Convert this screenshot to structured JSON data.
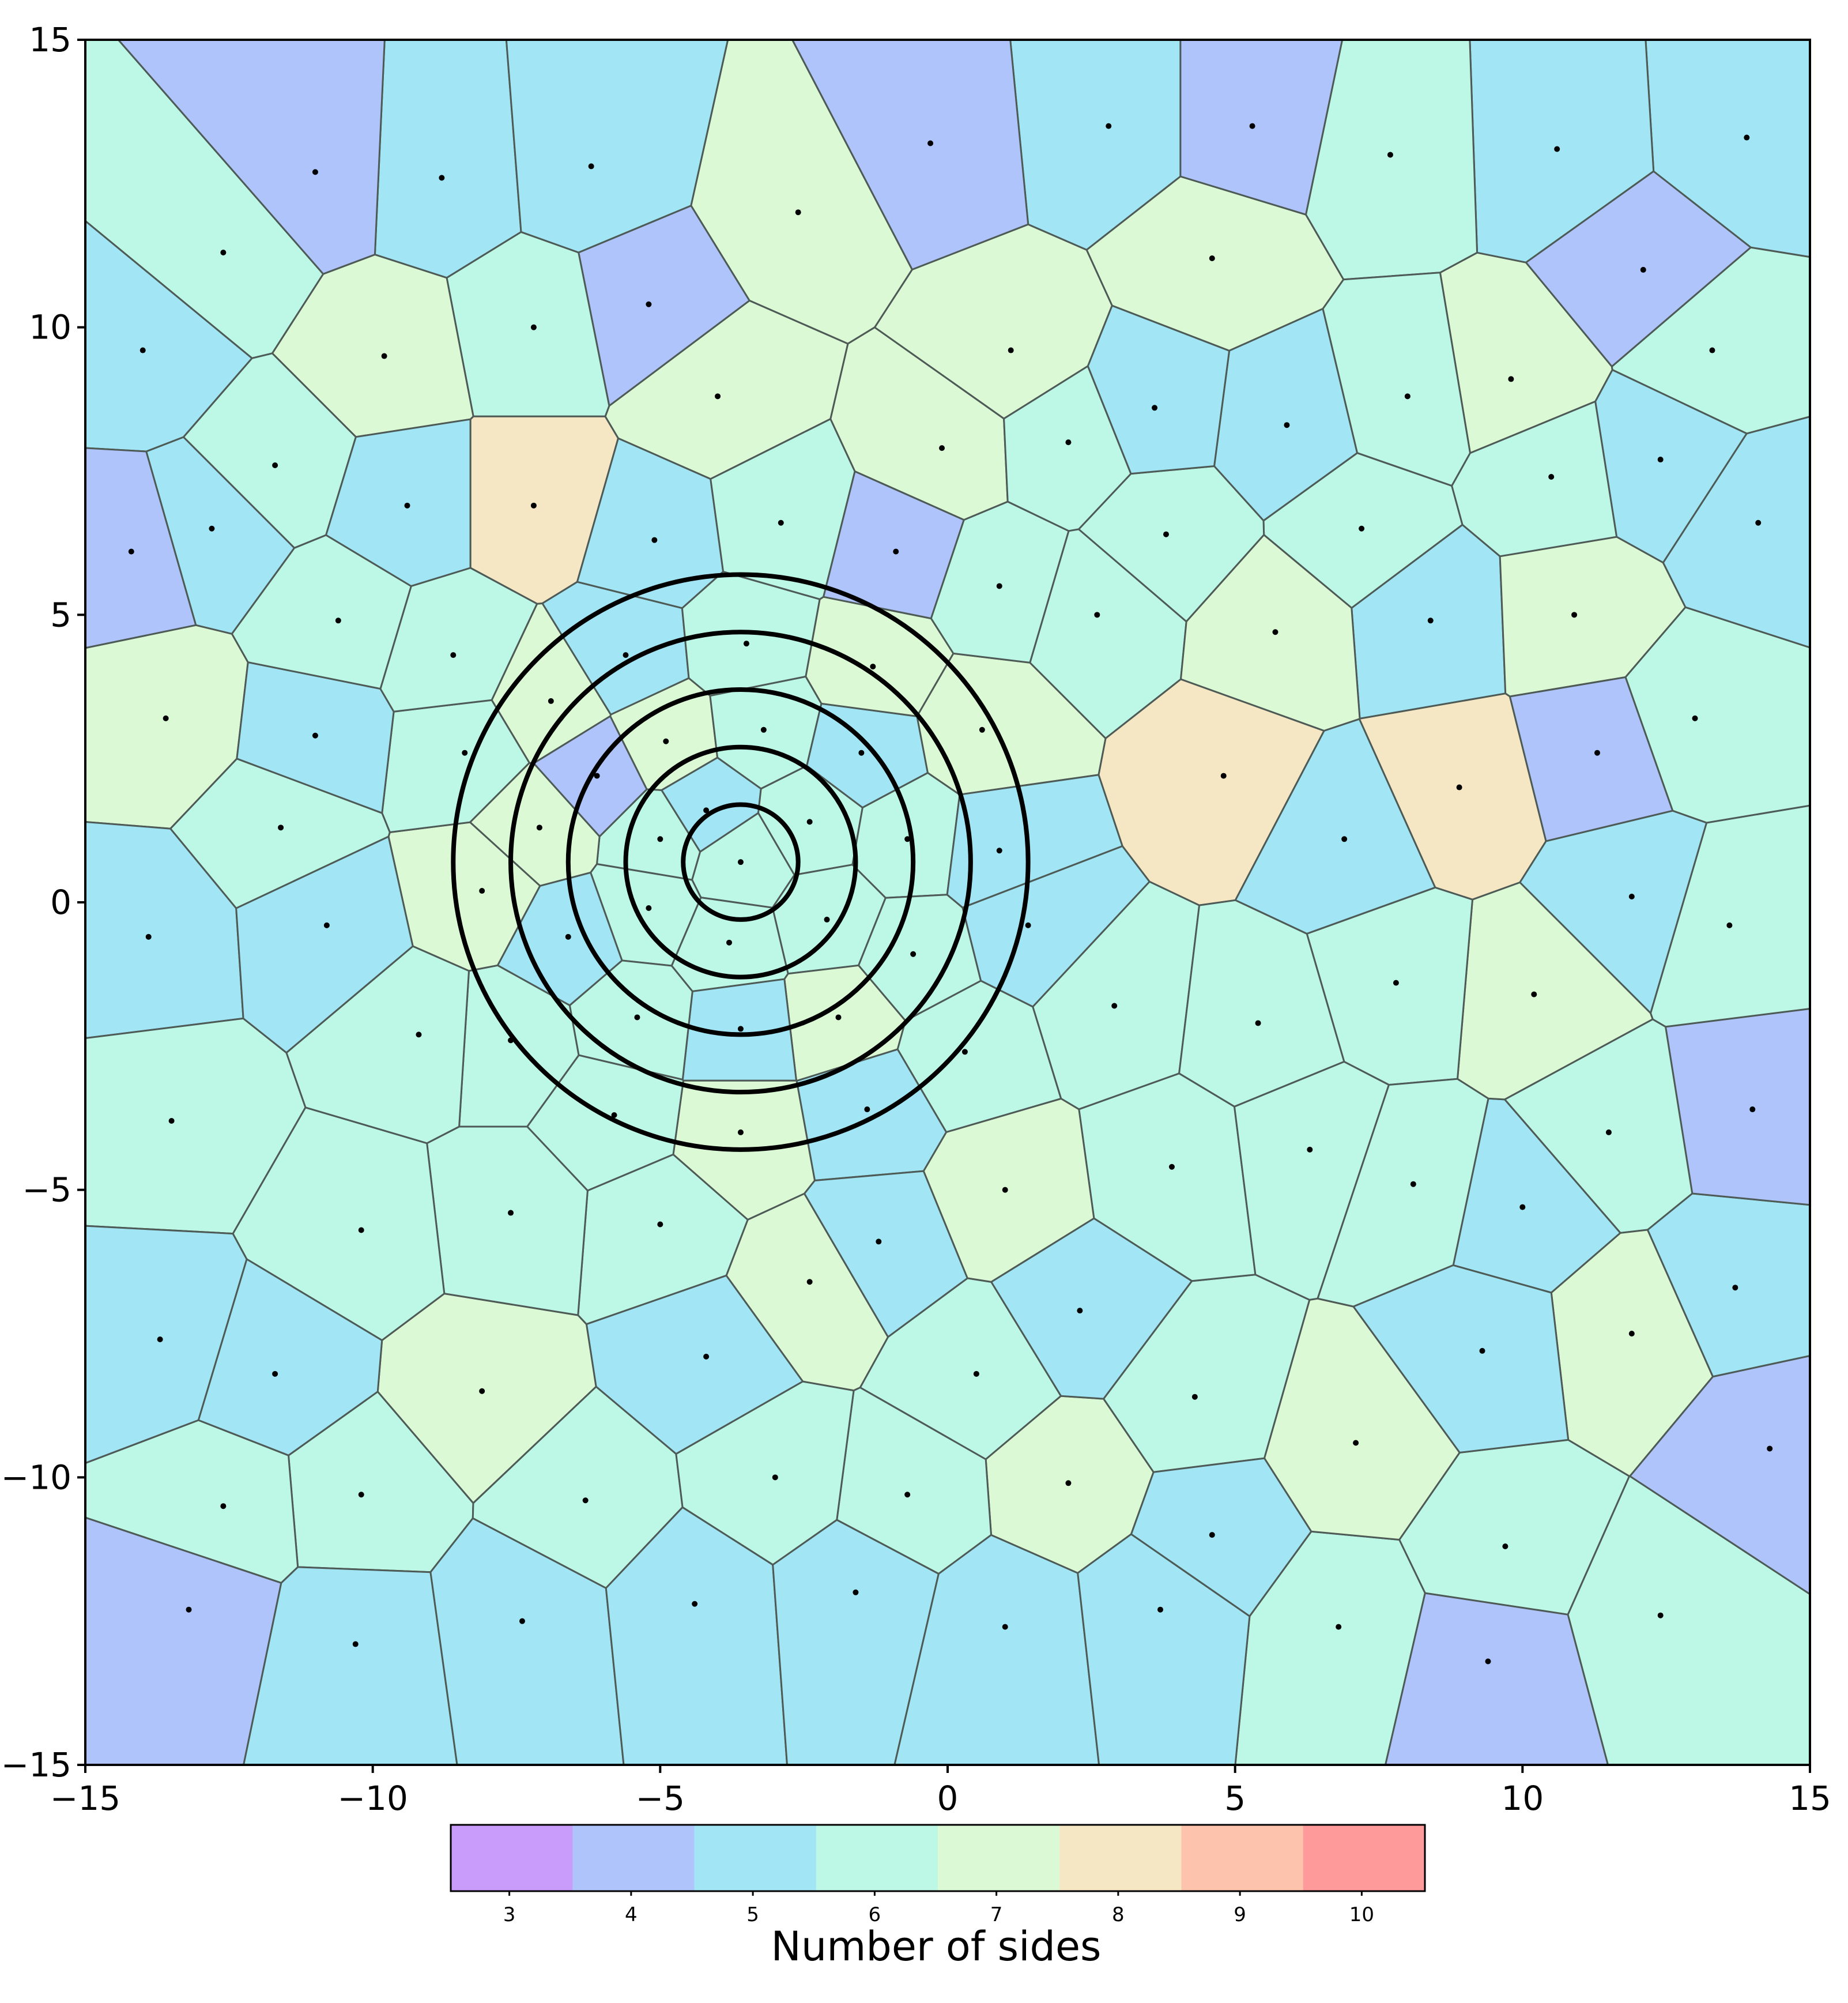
{
  "chart_data": {
    "type": "voronoi",
    "xlim": [
      -15,
      15
    ],
    "ylim": [
      -15,
      15
    ],
    "x_ticks": [
      -15,
      -10,
      -5,
      0,
      5,
      10,
      15
    ],
    "y_ticks": [
      -15,
      -10,
      -5,
      0,
      5,
      10,
      15
    ],
    "x_tick_labels": [
      "−15",
      "−10",
      "−5",
      "0",
      "5",
      "10",
      "15"
    ],
    "y_tick_labels": [
      "−15",
      "−10",
      "−5",
      "0",
      "5",
      "10",
      "15"
    ],
    "colorbar": {
      "label": "Number of sides",
      "values": [
        3,
        4,
        5,
        6,
        7,
        8,
        9,
        10
      ],
      "tick_labels": [
        "3",
        "4",
        "5",
        "6",
        "7",
        "8",
        "9",
        "10"
      ],
      "colors": [
        "#c99bfa",
        "#aec4fa",
        "#a2e6f5",
        "#bdf7e6",
        "#dcf9d6",
        "#f5e7c4",
        "#fdc3ac",
        "#fe9a9a"
      ]
    },
    "circles": {
      "center": [
        -3.6,
        0.7
      ],
      "radii": [
        1.0,
        2.0,
        3.0,
        4.0,
        5.0
      ]
    },
    "seed_points": [
      [
        -3.6,
        0.7
      ],
      [
        -4.2,
        1.6
      ],
      [
        -2.4,
        1.4
      ],
      [
        -2.1,
        -0.3
      ],
      [
        -3.8,
        -0.7
      ],
      [
        -5.2,
        -0.1
      ],
      [
        -5.0,
        1.1
      ],
      [
        -6.1,
        2.2
      ],
      [
        -4.9,
        2.8
      ],
      [
        -3.2,
        3.0
      ],
      [
        -1.5,
        2.6
      ],
      [
        -0.7,
        1.1
      ],
      [
        -0.6,
        -0.9
      ],
      [
        -1.9,
        -2.0
      ],
      [
        -3.6,
        -2.2
      ],
      [
        -5.4,
        -2.0
      ],
      [
        -6.6,
        -0.6
      ],
      [
        -7.1,
        1.3
      ],
      [
        -6.9,
        3.5
      ],
      [
        -5.6,
        4.3
      ],
      [
        -3.5,
        4.5
      ],
      [
        -1.3,
        4.1
      ],
      [
        0.6,
        3.0
      ],
      [
        0.9,
        0.9
      ],
      [
        1.4,
        -0.4
      ],
      [
        0.3,
        -2.6
      ],
      [
        -1.4,
        -3.6
      ],
      [
        -3.6,
        -4.0
      ],
      [
        -5.8,
        -3.7
      ],
      [
        -7.6,
        -2.4
      ],
      [
        -8.1,
        0.2
      ],
      [
        -8.4,
        2.6
      ],
      [
        -12.6,
        11.3
      ],
      [
        -11.6,
        1.3
      ],
      [
        -12.8,
        6.5
      ],
      [
        8.4,
        4.9
      ],
      [
        9.8,
        9.1
      ],
      [
        -10.6,
        4.9
      ],
      [
        7.2,
        6.5
      ],
      [
        2.6,
        5.0
      ],
      [
        -4.2,
        -7.9
      ],
      [
        -10.2,
        -10.3
      ],
      [
        -6.3,
        -10.4
      ],
      [
        2.8,
        13.5
      ],
      [
        10.9,
        5.0
      ],
      [
        10.0,
        -5.3
      ],
      [
        9.7,
        -11.2
      ],
      [
        4.3,
        -8.6
      ],
      [
        6.8,
        -12.6
      ],
      [
        0.5,
        -8.2
      ],
      [
        -12.6,
        -10.5
      ],
      [
        -8.1,
        -8.5
      ],
      [
        2.9,
        -1.8
      ],
      [
        4.6,
        11.2
      ],
      [
        -4.0,
        8.8
      ],
      [
        1.1,
        9.6
      ],
      [
        5.9,
        8.3
      ],
      [
        12.1,
        11.0
      ],
      [
        -8.8,
        12.6
      ],
      [
        -6.2,
        12.8
      ],
      [
        -11.0,
        12.7
      ],
      [
        -14.0,
        9.6
      ],
      [
        -14.2,
        6.1
      ],
      [
        -13.6,
        3.2
      ],
      [
        -13.9,
        -0.6
      ],
      [
        -13.5,
        -3.8
      ],
      [
        -13.7,
        -7.6
      ],
      [
        -13.2,
        -12.3
      ],
      [
        -10.3,
        -12.9
      ],
      [
        -7.4,
        -12.5
      ],
      [
        -4.4,
        -12.2
      ],
      [
        -1.6,
        -12.0
      ],
      [
        1.0,
        -12.6
      ],
      [
        3.7,
        -12.3
      ],
      [
        9.4,
        -13.2
      ],
      [
        12.4,
        -12.4
      ],
      [
        14.3,
        -9.5
      ],
      [
        13.7,
        -6.7
      ],
      [
        14.0,
        -3.6
      ],
      [
        13.6,
        -0.4
      ],
      [
        13.0,
        3.2
      ],
      [
        14.1,
        6.6
      ],
      [
        13.3,
        9.6
      ],
      [
        13.9,
        13.3
      ],
      [
        10.6,
        13.1
      ],
      [
        7.7,
        13.0
      ],
      [
        5.3,
        13.5
      ],
      [
        -0.3,
        13.2
      ],
      [
        -2.6,
        12.0
      ],
      [
        -5.2,
        10.4
      ],
      [
        -7.2,
        10.0
      ],
      [
        -9.8,
        9.5
      ],
      [
        -11.7,
        7.6
      ],
      [
        -9.4,
        6.9
      ],
      [
        -7.2,
        6.9
      ],
      [
        -5.1,
        6.3
      ],
      [
        -2.9,
        6.6
      ],
      [
        -0.9,
        6.1
      ],
      [
        0.9,
        5.5
      ],
      [
        3.8,
        6.4
      ],
      [
        5.7,
        4.7
      ],
      [
        4.8,
        2.2
      ],
      [
        6.9,
        1.1
      ],
      [
        8.9,
        2.0
      ],
      [
        11.3,
        2.6
      ],
      [
        11.9,
        0.1
      ],
      [
        10.2,
        -1.6
      ],
      [
        7.8,
        -1.4
      ],
      [
        5.4,
        -2.1
      ],
      [
        3.9,
        -4.6
      ],
      [
        6.3,
        -4.3
      ],
      [
        8.1,
        -4.9
      ],
      [
        11.5,
        -4.0
      ],
      [
        11.9,
        -7.5
      ],
      [
        9.3,
        -7.8
      ],
      [
        7.1,
        -9.4
      ],
      [
        4.6,
        -11.0
      ],
      [
        2.1,
        -10.1
      ],
      [
        -0.7,
        -10.3
      ],
      [
        -3.0,
        -10.0
      ],
      [
        -2.4,
        -6.6
      ],
      [
        -5.0,
        -5.6
      ],
      [
        -7.6,
        -5.4
      ],
      [
        -10.2,
        -5.7
      ],
      [
        -11.7,
        -8.2
      ],
      [
        -9.2,
        -2.3
      ],
      [
        -10.8,
        -0.4
      ],
      [
        -11.0,
        2.9
      ],
      [
        -8.6,
        4.3
      ],
      [
        -1.2,
        -5.9
      ],
      [
        1.0,
        -5.0
      ],
      [
        2.3,
        -7.1
      ],
      [
        -0.1,
        7.9
      ],
      [
        2.1,
        8.0
      ],
      [
        3.6,
        8.6
      ],
      [
        8.0,
        8.8
      ],
      [
        10.5,
        7.4
      ],
      [
        12.4,
        7.7
      ]
    ]
  }
}
